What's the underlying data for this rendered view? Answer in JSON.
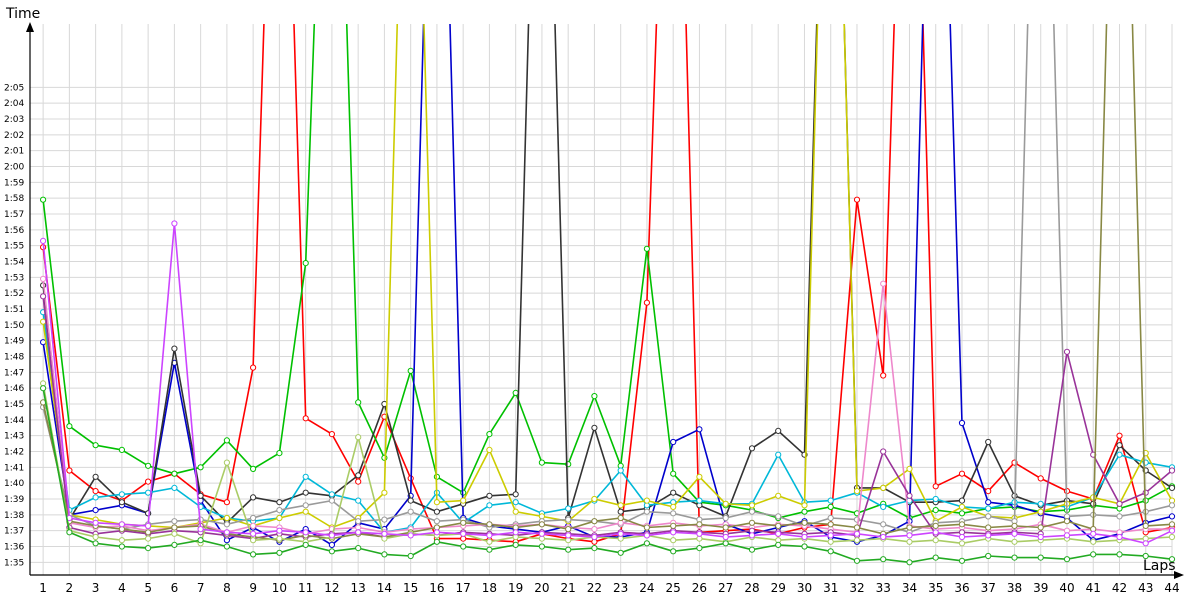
{
  "chart_data": {
    "type": "line",
    "title": "",
    "xlabel": "Laps",
    "ylabel": "Time",
    "x": [
      1,
      2,
      3,
      4,
      5,
      6,
      7,
      8,
      9,
      10,
      11,
      12,
      13,
      14,
      15,
      16,
      17,
      18,
      19,
      20,
      21,
      22,
      23,
      24,
      25,
      26,
      27,
      28,
      29,
      30,
      31,
      32,
      33,
      34,
      35,
      36,
      37,
      38,
      39,
      40,
      41,
      42,
      43,
      44
    ],
    "xlim": [
      0.5,
      44
    ],
    "ylim": [
      94.2,
      129
    ],
    "y_ticks": [
      "1:35",
      "1:36",
      "1:37",
      "1:38",
      "1:39",
      "1:40",
      "1:41",
      "1:42",
      "1:43",
      "1:44",
      "1:45",
      "1:46",
      "1:47",
      "1:48",
      "1:49",
      "1:50",
      "1:51",
      "1:52",
      "1:53",
      "1:54",
      "1:55",
      "1:56",
      "1:57",
      "1:58",
      "1:59",
      "2:00",
      "2:01",
      "2:02",
      "2:03",
      "2:04",
      "2:05"
    ],
    "grid": true,
    "legend": "none",
    "series": [
      {
        "color": "#ff0000",
        "values": [
          114.9,
          100.8,
          99.5,
          98.9,
          100.1,
          100.6,
          99.3,
          98.8,
          107.3,
          160,
          104.1,
          103.1,
          100.1,
          104.2,
          100.3,
          96.5,
          96.5,
          96.4,
          96.3,
          96.8,
          96.5,
          96.3,
          96.8,
          111.4,
          160,
          96.9,
          97,
          97.1,
          96.8,
          97.2,
          97.4,
          117.9,
          106.8,
          160,
          99.8,
          100.6,
          99.5,
          101.3,
          100.3,
          99.5,
          99,
          103,
          96.9,
          97.2
        ]
      },
      {
        "color": "#00c000",
        "values": [
          117.9,
          103.6,
          102.4,
          102.1,
          101.1,
          100.6,
          101,
          102.7,
          100.9,
          101.9,
          113.9,
          160,
          105.1,
          101.6,
          107.1,
          100.4,
          99.4,
          103.1,
          105.7,
          101.3,
          101.2,
          105.5,
          101.1,
          114.8,
          100.6,
          98.8,
          98.6,
          98.3,
          97.8,
          98.2,
          98.5,
          98.1,
          98.7,
          97.8,
          98.3,
          98.1,
          98.4,
          98.5,
          98.2,
          98.3,
          98.6,
          98.4,
          98.9,
          99.8
        ]
      },
      {
        "color": "#0000cc",
        "values": [
          108.9,
          98,
          98.3,
          98.6,
          98.1,
          107.6,
          98.9,
          96.4,
          97.2,
          96.3,
          97.1,
          96.1,
          97.5,
          97.1,
          99.2,
          160,
          97.8,
          97.3,
          97.1,
          96.9,
          97.3,
          96.6,
          96.6,
          96.9,
          102.6,
          103.4,
          97.4,
          96.8,
          97.2,
          97.6,
          96.6,
          96.3,
          96.7,
          97.6,
          160,
          103.8,
          98.8,
          98.6,
          98.1,
          97.8,
          96.4,
          96.8,
          97.5,
          97.9
        ]
      },
      {
        "color": "#333333",
        "values": [
          112.5,
          97.7,
          100.4,
          98.8,
          98.1,
          108.5,
          99.2,
          97.5,
          99.1,
          98.8,
          99.4,
          99.2,
          100.5,
          105,
          98.9,
          98.2,
          98.7,
          99.2,
          99.3,
          160,
          97.8,
          103.5,
          98.2,
          98.4,
          99.4,
          98.6,
          97.9,
          102.2,
          103.3,
          101.8,
          160,
          99.7,
          99.7,
          98.8,
          98.8,
          98.9,
          102.6,
          99.2,
          98.6,
          98.9,
          98.7,
          102.4,
          100.8,
          99.7
        ]
      },
      {
        "color": "#00b8d8",
        "values": [
          110.8,
          98.3,
          99.1,
          99.3,
          99.4,
          99.7,
          98.5,
          97.8,
          97.6,
          97.8,
          100.4,
          99.3,
          98.9,
          96.9,
          97.2,
          99.4,
          97.5,
          98.6,
          98.8,
          98.1,
          98.4,
          98.9,
          100.8,
          98.6,
          98.8,
          98.9,
          98.7,
          98.7,
          101.8,
          98.8,
          98.9,
          99.4,
          98.5,
          98.9,
          99,
          98.5,
          98.4,
          98.8,
          98.7,
          98.5,
          99.1,
          101.8,
          101.3,
          101
        ]
      },
      {
        "color": "#cccc00",
        "values": [
          110.2,
          98,
          97.7,
          97.4,
          97.3,
          97.2,
          97.5,
          97.8,
          97.3,
          97.8,
          98.2,
          97.2,
          97.8,
          99.4,
          160,
          98.8,
          98.9,
          102.1,
          98.2,
          97.9,
          97.6,
          99,
          98.6,
          98.9,
          98.5,
          100.4,
          98.7,
          98.6,
          99.2,
          98.6,
          160,
          99.5,
          99.7,
          100.9,
          97.6,
          98.5,
          97.9,
          97.8,
          98.2,
          98.7,
          99.1,
          98.7,
          101.9,
          98.9
        ]
      },
      {
        "color": "#9a9a9a",
        "values": [
          104.8,
          98,
          97.3,
          97.1,
          97.4,
          97.6,
          97.7,
          97.4,
          97.8,
          98.3,
          98.6,
          98.9,
          97.6,
          97.7,
          98.2,
          97.6,
          97.7,
          97.2,
          97.4,
          97.6,
          97.7,
          97.6,
          97.4,
          98.2,
          98.1,
          97.7,
          97.8,
          98.2,
          97.9,
          97.3,
          97.8,
          97.7,
          97.4,
          96.9,
          97.5,
          97.6,
          97.9,
          97.6,
          160,
          97.9,
          98,
          97.9,
          98.2,
          98.6
        ]
      },
      {
        "color": "#ee88cc",
        "values": [
          112.9,
          97.5,
          97.2,
          97.3,
          97,
          97.2,
          97.4,
          96.9,
          97.3,
          97.2,
          96.8,
          97.1,
          97.2,
          96.9,
          97.1,
          97.2,
          97.3,
          97.4,
          97.3,
          97.4,
          97.2,
          97.1,
          97.5,
          97.3,
          97.5,
          97.3,
          97.4,
          97.2,
          97.4,
          97.3,
          97.1,
          96.9,
          112.6,
          97.3,
          97.1,
          97.2,
          97,
          97.1,
          97.4,
          97,
          97.1,
          96.9,
          97.1,
          97.1
        ]
      },
      {
        "color": "#993399",
        "values": [
          111.8,
          97.2,
          96.8,
          97,
          96.8,
          97,
          96.9,
          96.7,
          96.5,
          96.8,
          96.6,
          96.8,
          96.9,
          96.6,
          96.8,
          96.7,
          96.9,
          96.8,
          96.7,
          96.9,
          96.8,
          96.7,
          96.9,
          96.8,
          97,
          96.9,
          96.8,
          97,
          96.9,
          96.8,
          96.9,
          96.7,
          102,
          99.2,
          96.8,
          96.9,
          96.8,
          96.9,
          96.8,
          108.3,
          101.8,
          98.7,
          99.4,
          100.8
        ]
      },
      {
        "color": "#888844",
        "values": [
          105.1,
          97.6,
          97.3,
          97.1,
          96.9,
          97.2,
          97.3,
          96.8,
          96.6,
          96.4,
          96.7,
          96.5,
          96.8,
          96.6,
          96.9,
          97.2,
          97.5,
          97.4,
          97.2,
          97.4,
          97.1,
          97.6,
          97.8,
          97.2,
          97.3,
          97.4,
          97.2,
          97.5,
          97.3,
          97.5,
          97.4,
          97.2,
          96.8,
          97.2,
          97.3,
          97.4,
          97.2,
          97.3,
          97.2,
          97.6,
          97.1,
          160,
          97.3,
          97.4
        ]
      },
      {
        "color": "#aacc66",
        "values": [
          106.3,
          97,
          96.6,
          96.4,
          96.5,
          96.8,
          96.2,
          101.3,
          96.4,
          96.5,
          96.3,
          96.6,
          102.9,
          96.5,
          96.8,
          96.7,
          96.8,
          96.3,
          96.6,
          96.5,
          96.4,
          96.6,
          96.5,
          96.7,
          96.4,
          96.5,
          96.3,
          96.6,
          96.4,
          96.5,
          96.3,
          96.4,
          96.5,
          96.3,
          96.4,
          96.2,
          96.5,
          96.3,
          96.4,
          96.5,
          96.3,
          96.4,
          96.5,
          96.6
        ]
      },
      {
        "color": "#cc44ff",
        "values": [
          115.3,
          97.8,
          97.5,
          97.4,
          97.3,
          116.4,
          97.1,
          96.9,
          96.8,
          97,
          96.9,
          96.7,
          96.9,
          96.8,
          96.7,
          96.9,
          96.8,
          96.7,
          96.9,
          96.8,
          96.7,
          96.6,
          96.8,
          96.7,
          96.9,
          96.8,
          96.6,
          96.7,
          96.8,
          96.6,
          96.7,
          96.8,
          96.6,
          96.7,
          96.9,
          96.6,
          96.7,
          96.8,
          96.6,
          96.7,
          96.8,
          96.6,
          96.2,
          97
        ]
      },
      {
        "color": "#22aa22",
        "values": [
          106,
          96.9,
          96.2,
          96,
          95.9,
          96.1,
          96.4,
          96,
          95.5,
          95.6,
          96.1,
          95.7,
          95.9,
          95.5,
          95.4,
          96.3,
          96,
          95.8,
          96.1,
          96,
          95.8,
          95.9,
          95.6,
          96.2,
          95.7,
          95.9,
          96.2,
          95.8,
          96.1,
          96,
          95.7,
          95.1,
          95.2,
          95,
          95.3,
          95.1,
          95.4,
          95.3,
          95.3,
          95.2,
          95.5,
          95.5,
          95.4,
          95.2
        ]
      }
    ]
  }
}
